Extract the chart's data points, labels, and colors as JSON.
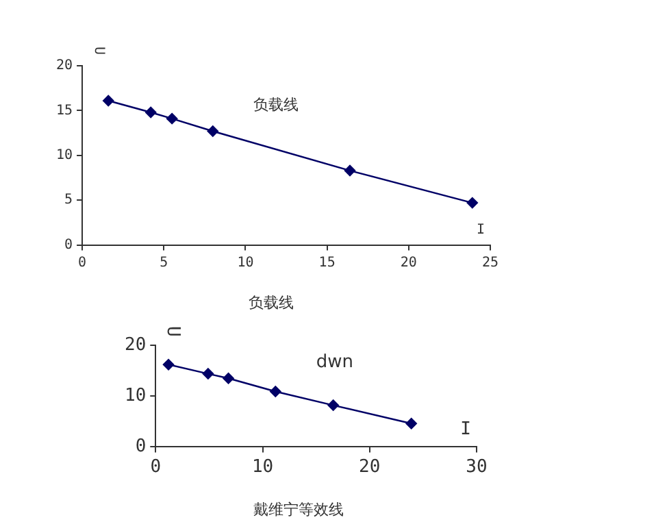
{
  "chart_data": [
    {
      "type": "line",
      "title": "负载线",
      "xlabel": "I",
      "ylabel": "U",
      "annotations": [
        "负载线"
      ],
      "marker": "diamond",
      "line_style": "solid",
      "x": [
        1.6,
        4.2,
        5.5,
        8.0,
        16.4,
        23.9
      ],
      "series": [
        {
          "color": "#000066",
          "values": [
            16.1,
            14.8,
            14.1,
            12.7,
            8.3,
            4.7
          ]
        }
      ],
      "xlim": [
        0,
        25
      ],
      "xticks": [
        0,
        5,
        10,
        15,
        20,
        25
      ],
      "ylim": [
        0,
        20
      ],
      "yticks": [
        0,
        5,
        10,
        15,
        20
      ]
    },
    {
      "type": "line",
      "title": "戴维宁等效线",
      "xlabel": "I",
      "ylabel": "U",
      "annotations": [
        "dwn"
      ],
      "marker": "diamond",
      "line_style": "solid",
      "x": [
        1.2,
        4.9,
        6.8,
        11.2,
        16.6,
        23.9
      ],
      "series": [
        {
          "color": "#000066",
          "values": [
            16.2,
            14.4,
            13.5,
            10.9,
            8.2,
            4.6
          ]
        }
      ],
      "xlim": [
        0,
        30
      ],
      "xticks": [
        0,
        10,
        20,
        30
      ],
      "ylim": [
        0,
        20
      ],
      "yticks": [
        0,
        10,
        20
      ]
    }
  ]
}
